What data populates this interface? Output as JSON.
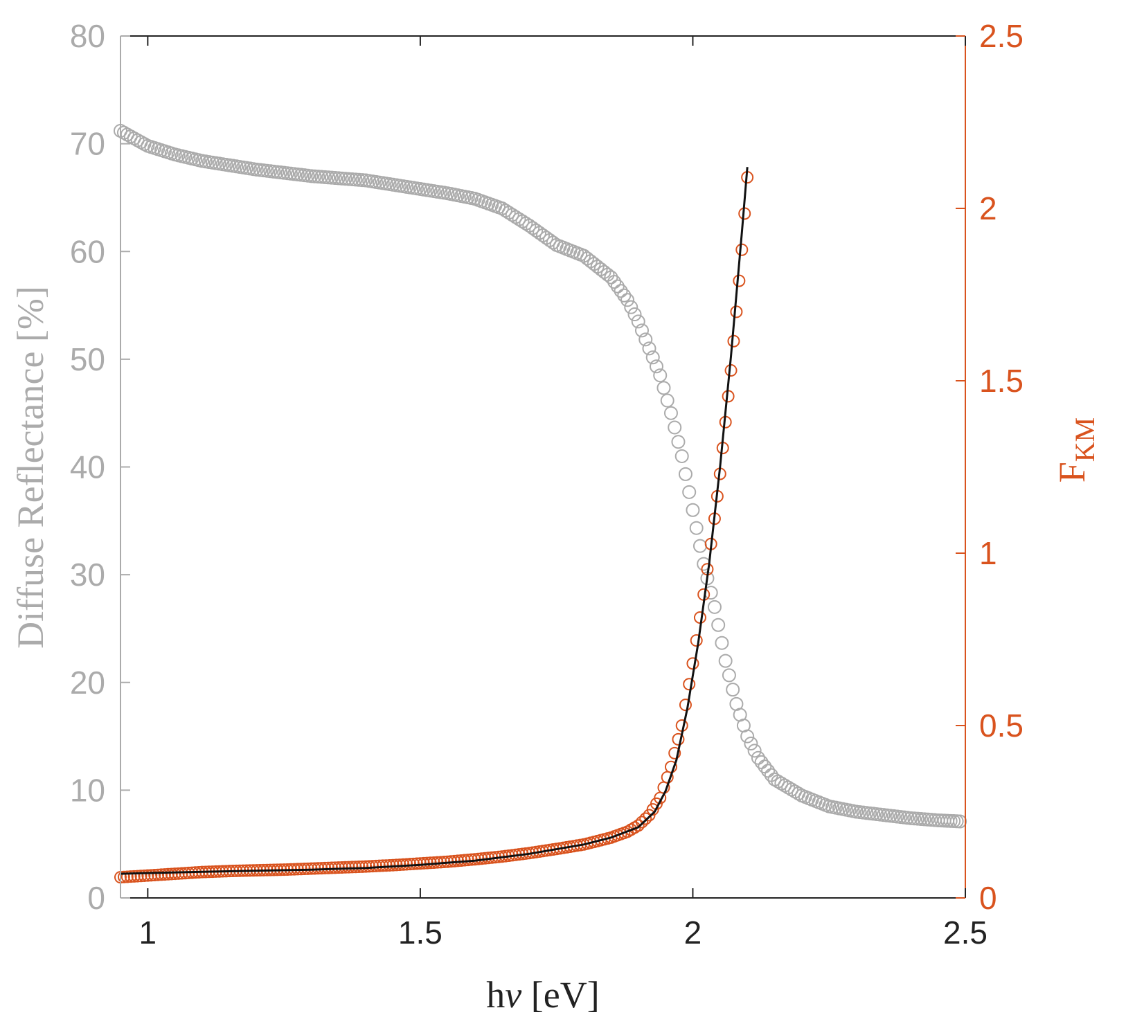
{
  "chart_data": {
    "type": "scatter",
    "x_axis": {
      "label_prefix": "h",
      "label_symbol": "ν",
      "label_suffix": " [eV]",
      "range": [
        0.95,
        2.5
      ],
      "ticks": [
        1,
        1.5,
        2,
        2.5
      ],
      "tick_labels": [
        "1",
        "1.5",
        "2",
        "2.5"
      ],
      "color": "#222222"
    },
    "y_left": {
      "label": "Diffuse Reflectance [%]",
      "range": [
        0,
        80
      ],
      "ticks": [
        0,
        10,
        20,
        30,
        40,
        50,
        60,
        70,
        80
      ],
      "tick_labels": [
        "0",
        "10",
        "20",
        "30",
        "40",
        "50",
        "60",
        "70",
        "80"
      ],
      "color": "#ababab"
    },
    "y_right": {
      "label_main": "F",
      "label_sub": "KM",
      "range": [
        0,
        2.5
      ],
      "ticks": [
        0,
        0.5,
        1,
        1.5,
        2,
        2.5
      ],
      "tick_labels": [
        "0",
        "0.5",
        "1",
        "1.5",
        "2",
        "2.5"
      ],
      "color": "#d9531e"
    },
    "grid": false,
    "series": [
      {
        "axis": "left",
        "marker": "open-circle",
        "color": "#ababab",
        "points": [
          [
            0.95,
            71.2
          ],
          [
            1.0,
            69.8
          ],
          [
            1.05,
            69.0
          ],
          [
            1.1,
            68.4
          ],
          [
            1.15,
            68.0
          ],
          [
            1.2,
            67.6
          ],
          [
            1.25,
            67.3
          ],
          [
            1.3,
            67.0
          ],
          [
            1.35,
            66.8
          ],
          [
            1.4,
            66.6
          ],
          [
            1.45,
            66.2
          ],
          [
            1.5,
            65.8
          ],
          [
            1.55,
            65.4
          ],
          [
            1.6,
            64.9
          ],
          [
            1.65,
            64.0
          ],
          [
            1.7,
            62.4
          ],
          [
            1.75,
            60.6
          ],
          [
            1.8,
            59.6
          ],
          [
            1.85,
            57.6
          ],
          [
            1.88,
            55.5
          ],
          [
            1.9,
            53.5
          ],
          [
            1.92,
            51.0
          ],
          [
            1.94,
            48.5
          ],
          [
            1.96,
            45.0
          ],
          [
            1.98,
            41.0
          ],
          [
            2.0,
            36.0
          ],
          [
            2.02,
            31.0
          ],
          [
            2.04,
            27.0
          ],
          [
            2.06,
            22.0
          ],
          [
            2.08,
            18.0
          ],
          [
            2.1,
            15.0
          ],
          [
            2.12,
            13.0
          ],
          [
            2.15,
            11.0
          ],
          [
            2.2,
            9.5
          ],
          [
            2.25,
            8.5
          ],
          [
            2.3,
            8.0
          ],
          [
            2.35,
            7.7
          ],
          [
            2.4,
            7.4
          ],
          [
            2.45,
            7.2
          ],
          [
            2.49,
            7.1
          ]
        ]
      },
      {
        "axis": "right",
        "marker": "open-circle",
        "color": "#d9531e",
        "points": [
          [
            0.95,
            0.06
          ],
          [
            1.0,
            0.065
          ],
          [
            1.05,
            0.07
          ],
          [
            1.1,
            0.075
          ],
          [
            1.15,
            0.078
          ],
          [
            1.2,
            0.08
          ],
          [
            1.25,
            0.082
          ],
          [
            1.3,
            0.085
          ],
          [
            1.35,
            0.088
          ],
          [
            1.4,
            0.091
          ],
          [
            1.45,
            0.095
          ],
          [
            1.5,
            0.1
          ],
          [
            1.55,
            0.105
          ],
          [
            1.6,
            0.112
          ],
          [
            1.65,
            0.12
          ],
          [
            1.7,
            0.13
          ],
          [
            1.75,
            0.142
          ],
          [
            1.8,
            0.155
          ],
          [
            1.85,
            0.175
          ],
          [
            1.88,
            0.192
          ],
          [
            1.9,
            0.21
          ],
          [
            1.92,
            0.24
          ],
          [
            1.94,
            0.29
          ],
          [
            1.96,
            0.38
          ],
          [
            1.98,
            0.5
          ],
          [
            2.0,
            0.68
          ],
          [
            2.02,
            0.88
          ],
          [
            2.04,
            1.1
          ],
          [
            2.05,
            1.23
          ],
          [
            2.06,
            1.38
          ],
          [
            2.07,
            1.53
          ],
          [
            2.08,
            1.7
          ],
          [
            2.09,
            1.88
          ],
          [
            2.1,
            2.09
          ]
        ]
      },
      {
        "axis": "right",
        "marker": "line",
        "color": "#111111",
        "points": [
          [
            0.95,
            0.07
          ],
          [
            1.0,
            0.072
          ],
          [
            1.1,
            0.076
          ],
          [
            1.2,
            0.079
          ],
          [
            1.3,
            0.082
          ],
          [
            1.4,
            0.087
          ],
          [
            1.5,
            0.096
          ],
          [
            1.6,
            0.108
          ],
          [
            1.7,
            0.128
          ],
          [
            1.8,
            0.155
          ],
          [
            1.85,
            0.175
          ],
          [
            1.9,
            0.205
          ],
          [
            1.93,
            0.25
          ],
          [
            1.95,
            0.31
          ],
          [
            1.97,
            0.4
          ],
          [
            1.99,
            0.55
          ],
          [
            2.01,
            0.74
          ],
          [
            2.03,
            0.97
          ],
          [
            2.05,
            1.25
          ],
          [
            2.07,
            1.57
          ],
          [
            2.09,
            1.93
          ],
          [
            2.1,
            2.12
          ]
        ]
      }
    ]
  }
}
